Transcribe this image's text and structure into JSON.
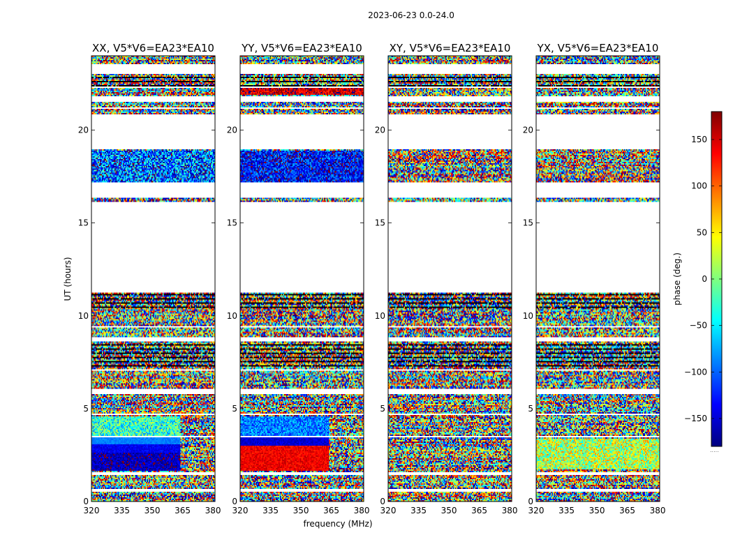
{
  "figure": {
    "suptitle": "2023-06-23 0.0-24.0",
    "xlabel": "frequency (MHz)",
    "ylabel": "UT (hours)",
    "colorbar_label": "phase (deg.)",
    "colorbar_dots": "....."
  },
  "chart_data": {
    "type": "heatmap",
    "colormap": "jet",
    "colormap_stops": [
      "#00007f",
      "#0000ff",
      "#007fff",
      "#00ffff",
      "#7fff7f",
      "#ffff00",
      "#ff7f00",
      "#ff0000",
      "#7f0000"
    ],
    "clim": [
      -180,
      180
    ],
    "colorbar_ticks": [
      -150,
      -100,
      -50,
      0,
      50,
      100,
      150
    ],
    "colorbar_tick_labels": [
      "−150",
      "−100",
      "−50",
      "0",
      "50",
      "100",
      "150"
    ],
    "xlim": [
      320,
      381
    ],
    "ylim": [
      0,
      24
    ],
    "xticks": [
      320,
      335,
      350,
      365,
      380
    ],
    "xtick_labels": [
      "320",
      "335",
      "350",
      "365",
      "380"
    ],
    "yticks": [
      0,
      5,
      10,
      15,
      20
    ],
    "ytick_labels": [
      "0",
      "5",
      "10",
      "15",
      "20"
    ],
    "flagged_bands_hours": [
      [
        0.55,
        0.65
      ],
      [
        1.45,
        1.55
      ],
      [
        3.45,
        3.55
      ],
      [
        4.65,
        4.75
      ],
      [
        5.75,
        6.05
      ],
      [
        7.05,
        7.15
      ],
      [
        8.65,
        8.85
      ],
      [
        9.35,
        9.45
      ],
      [
        11.25,
        16.15
      ],
      [
        16.35,
        17.15
      ],
      [
        18.95,
        20.85
      ],
      [
        21.15,
        21.25
      ],
      [
        21.55,
        21.85
      ],
      [
        22.25,
        22.35
      ],
      [
        23.05,
        23.55
      ]
    ],
    "black_bands_hours": [
      [
        22.35,
        23.0
      ],
      [
        10.3,
        11.2
      ],
      [
        7.2,
        8.5
      ]
    ],
    "panels": [
      {
        "title": "XX, V5*V6=EA23*EA10",
        "coherent_regions": [
          {
            "t0": 1.65,
            "t1": 2.6,
            "f0": 320,
            "f1": 364,
            "phase": -160,
            "jitter": 25
          },
          {
            "t0": 2.6,
            "t1": 3.05,
            "f0": 320,
            "f1": 364,
            "phase": -140,
            "jitter": 15
          },
          {
            "t0": 3.05,
            "t1": 3.45,
            "f0": 320,
            "f1": 364,
            "phase": -90,
            "jitter": 10
          },
          {
            "t0": 3.55,
            "t1": 4.55,
            "f0": 320,
            "f1": 364,
            "phase": -30,
            "jitter": 60
          },
          {
            "t0": 16.8,
            "t1": 18.9,
            "f0": 320,
            "f1": 381,
            "phase": -100,
            "jitter": 90
          }
        ]
      },
      {
        "title": "YY, V5*V6=EA23*EA10",
        "coherent_regions": [
          {
            "t0": 1.65,
            "t1": 3.0,
            "f0": 320,
            "f1": 364,
            "phase": 140,
            "jitter": 20
          },
          {
            "t0": 3.0,
            "t1": 3.45,
            "f0": 320,
            "f1": 364,
            "phase": -150,
            "jitter": 15
          },
          {
            "t0": 3.55,
            "t1": 4.55,
            "f0": 320,
            "f1": 364,
            "phase": -90,
            "jitter": 40
          },
          {
            "t0": 16.8,
            "t1": 18.9,
            "f0": 320,
            "f1": 381,
            "phase": -130,
            "jitter": 60
          },
          {
            "t0": 21.9,
            "t1": 22.25,
            "f0": 320,
            "f1": 381,
            "phase": 150,
            "jitter": 40
          }
        ]
      },
      {
        "title": "XY, V5*V6=EA23*EA10",
        "coherent_regions": []
      },
      {
        "title": "YX, V5*V6=EA23*EA10",
        "coherent_regions": [
          {
            "t0": 1.7,
            "t1": 3.4,
            "f0": 320,
            "f1": 381,
            "phase": 20,
            "jitter": 70
          }
        ]
      }
    ]
  }
}
